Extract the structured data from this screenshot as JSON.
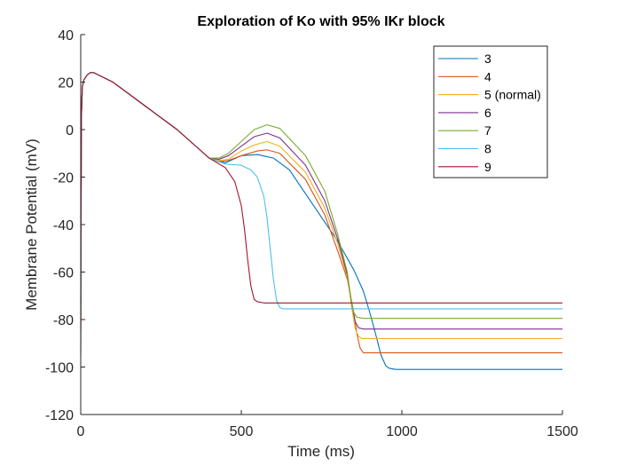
{
  "chart_data": {
    "type": "line",
    "title": "Exploration of Ko with 95% IKr block",
    "xlabel": "Time (ms)",
    "ylabel": "Membrane Potential (mV)",
    "xlim": [
      0,
      1500
    ],
    "ylim": [
      -120,
      40
    ],
    "xticks": [
      0,
      500,
      1000,
      1500
    ],
    "xtick_labels": [
      "0",
      "500",
      "1000",
      "1500"
    ],
    "yticks": [
      -120,
      -100,
      -80,
      -60,
      -40,
      -20,
      0,
      20,
      40
    ],
    "ytick_labels": [
      "-120",
      "-100",
      "-80",
      "-60",
      "-40",
      "-20",
      "0",
      "20",
      "40"
    ],
    "grid": false,
    "legend_position": "top-right",
    "series": [
      {
        "name": "3",
        "color": "#0072BD",
        "x": [
          0,
          2,
          5,
          10,
          20,
          30,
          40,
          100,
          200,
          300,
          400,
          450,
          500,
          550,
          600,
          650,
          700,
          750,
          800,
          850,
          880,
          900,
          920,
          935,
          950,
          960,
          980,
          1000,
          1100,
          1200,
          1300,
          1400,
          1500
        ],
        "y": [
          -96,
          5,
          18,
          21,
          23,
          24,
          24,
          20,
          10,
          0,
          -12,
          -14,
          -11,
          -10.5,
          -12,
          -17,
          -27,
          -37,
          -47,
          -59,
          -68,
          -77,
          -87,
          -95,
          -99.5,
          -100.5,
          -101,
          -101,
          -101,
          -101,
          -101,
          -101,
          -101
        ]
      },
      {
        "name": "4",
        "color": "#D95319",
        "x": [
          0,
          2,
          5,
          10,
          20,
          30,
          40,
          100,
          200,
          300,
          400,
          430,
          460,
          500,
          550,
          580,
          620,
          700,
          760,
          800,
          830,
          850,
          860,
          870,
          880,
          890,
          900,
          920,
          1000,
          1100,
          1500
        ],
        "y": [
          -94,
          5,
          18,
          21,
          23,
          24,
          24,
          20,
          10,
          0,
          -12,
          -13.5,
          -13,
          -11,
          -9,
          -8.5,
          -10,
          -21,
          -36,
          -51,
          -63,
          -77,
          -86,
          -92,
          -94,
          -94,
          -94,
          -94,
          -94,
          -94,
          -94
        ]
      },
      {
        "name": "5 (normal)",
        "color": "#EDB120",
        "x": [
          0,
          2,
          5,
          10,
          20,
          30,
          40,
          100,
          200,
          300,
          400,
          430,
          460,
          500,
          540,
          580,
          620,
          700,
          760,
          800,
          830,
          845,
          855,
          865,
          875,
          900,
          1000,
          1100,
          1500
        ],
        "y": [
          -88,
          5,
          18,
          21,
          23,
          24,
          24,
          20,
          10,
          0,
          -12,
          -13,
          -12.5,
          -9,
          -6.5,
          -5,
          -7,
          -18,
          -33,
          -48,
          -62,
          -76,
          -84,
          -87,
          -88,
          -88,
          -88,
          -88,
          -88
        ]
      },
      {
        "name": "6",
        "color": "#7E2F8E",
        "x": [
          0,
          2,
          5,
          10,
          20,
          30,
          40,
          100,
          200,
          300,
          400,
          430,
          460,
          500,
          540,
          580,
          620,
          700,
          760,
          800,
          830,
          845,
          855,
          865,
          880,
          900,
          1000,
          1500
        ],
        "y": [
          -84,
          5,
          18,
          21,
          23,
          24,
          24,
          20,
          10,
          0,
          -12,
          -12.5,
          -11,
          -7,
          -3,
          -1.5,
          -3.5,
          -15,
          -30,
          -46,
          -61,
          -74,
          -81,
          -83.5,
          -84,
          -84,
          -84,
          -84
        ]
      },
      {
        "name": "7",
        "color": "#77AC30",
        "x": [
          0,
          2,
          5,
          10,
          20,
          30,
          40,
          100,
          200,
          300,
          400,
          430,
          460,
          500,
          540,
          580,
          620,
          700,
          760,
          800,
          830,
          840,
          850,
          860,
          880,
          900,
          1000,
          1500
        ],
        "y": [
          -79,
          5,
          18,
          21,
          23,
          24,
          24,
          20,
          10,
          0,
          -12,
          -12,
          -10,
          -5,
          0,
          2,
          0.5,
          -11,
          -26,
          -44,
          -60,
          -70,
          -77,
          -79,
          -79.5,
          -79.5,
          -79.5,
          -79.5
        ]
      },
      {
        "name": "8",
        "color": "#4DBEEE",
        "x": [
          0,
          2,
          5,
          10,
          20,
          30,
          40,
          100,
          200,
          300,
          400,
          450,
          500,
          530,
          550,
          570,
          580,
          590,
          600,
          610,
          620,
          630,
          650,
          700,
          1000,
          1500
        ],
        "y": [
          -76,
          5,
          18,
          21,
          23,
          24,
          24,
          20,
          10,
          0,
          -12,
          -14.5,
          -15,
          -17,
          -20,
          -28,
          -37,
          -50,
          -63,
          -72,
          -75,
          -75.5,
          -75.5,
          -75.5,
          -75.5,
          -75.5
        ]
      },
      {
        "name": "9",
        "color": "#A2142F",
        "x": [
          0,
          2,
          5,
          10,
          20,
          30,
          40,
          100,
          200,
          300,
          400,
          450,
          480,
          500,
          510,
          520,
          530,
          540,
          550,
          570,
          600,
          1000,
          1500
        ],
        "y": [
          -73,
          5,
          18,
          21,
          23,
          24,
          24,
          20,
          10,
          0,
          -12,
          -16,
          -22,
          -32,
          -42,
          -55,
          -66,
          -71.5,
          -72.5,
          -73,
          -73,
          -73,
          -73
        ]
      }
    ]
  }
}
